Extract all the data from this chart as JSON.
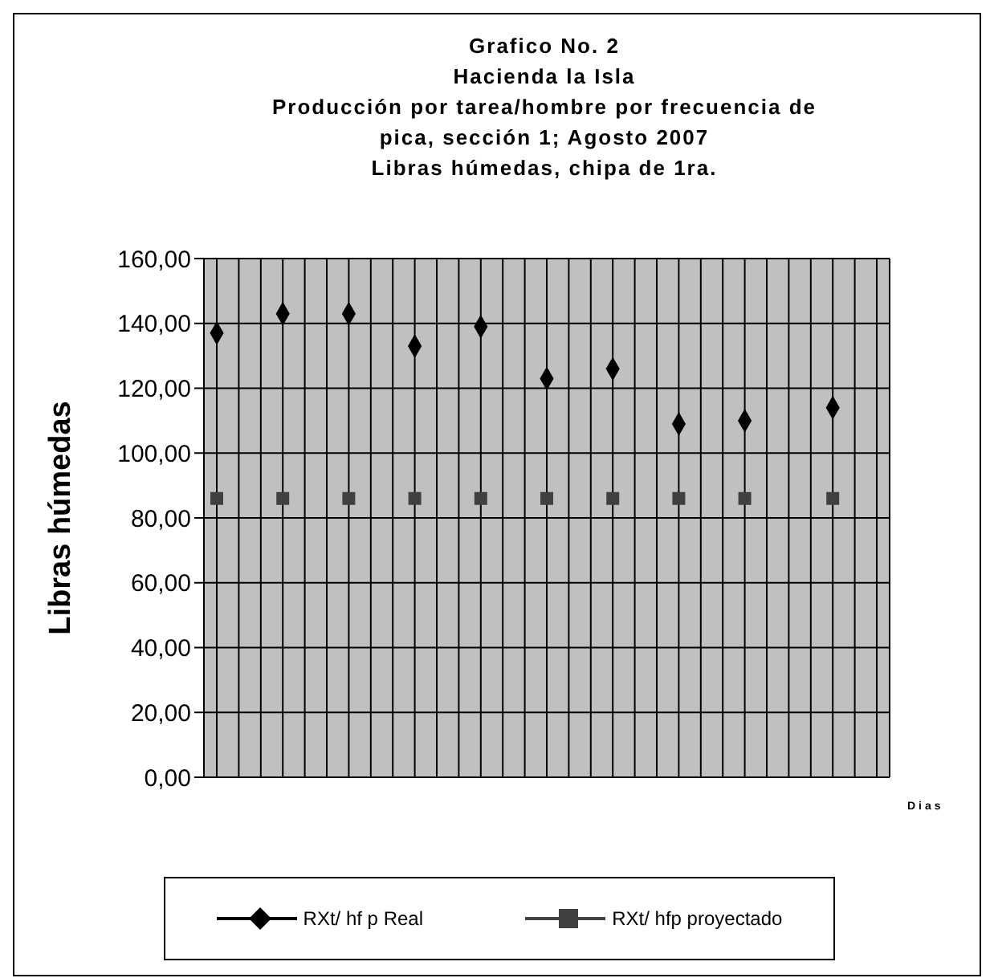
{
  "chart_data": {
    "type": "scatter",
    "title": "Grafico No. 2\nHacienda la Isla\nProducción por tarea/hombre por frecuencia de\npica, sección 1; Agosto 2007\nLibras húmedas, chipa de 1ra.",
    "xlabel": "Dias",
    "ylabel": "Libras húmedas",
    "categories": [
      null,
      null,
      null,
      null,
      null,
      null,
      null,
      null,
      null,
      null,
      null,
      null,
      null,
      null,
      null,
      null,
      null,
      null,
      null,
      null,
      null,
      null,
      null,
      null,
      null,
      null,
      null,
      null,
      null,
      null,
      null
    ],
    "series": [
      {
        "name": "RXt/ hf p Real",
        "color": "#000000",
        "marker": "diamond",
        "values": [
          137,
          null,
          null,
          143,
          null,
          null,
          143,
          null,
          null,
          133,
          null,
          null,
          139,
          null,
          null,
          123,
          null,
          null,
          126,
          null,
          null,
          109,
          null,
          null,
          110,
          null,
          null,
          null,
          114,
          null,
          null
        ]
      },
      {
        "name": "RXt/ hfp proyectado",
        "color": "#404040",
        "marker": "square",
        "values": [
          86,
          null,
          null,
          86,
          null,
          null,
          86,
          null,
          null,
          86,
          null,
          null,
          86,
          null,
          null,
          86,
          null,
          null,
          86,
          null,
          null,
          86,
          null,
          null,
          86,
          null,
          null,
          null,
          86,
          null,
          null
        ]
      }
    ],
    "ylim": [
      0,
      160
    ],
    "yticks": [
      {
        "value": 0,
        "label": "0,00"
      },
      {
        "value": 20,
        "label": "20,00"
      },
      {
        "value": 40,
        "label": "40,00"
      },
      {
        "value": 60,
        "label": "60,00"
      },
      {
        "value": 80,
        "label": "80,00"
      },
      {
        "value": 100,
        "label": "100,00"
      },
      {
        "value": 120,
        "label": "120,00"
      },
      {
        "value": 140,
        "label": "140,00"
      },
      {
        "value": 160,
        "label": "160,00"
      }
    ],
    "grid": true,
    "legend": "bottom"
  }
}
